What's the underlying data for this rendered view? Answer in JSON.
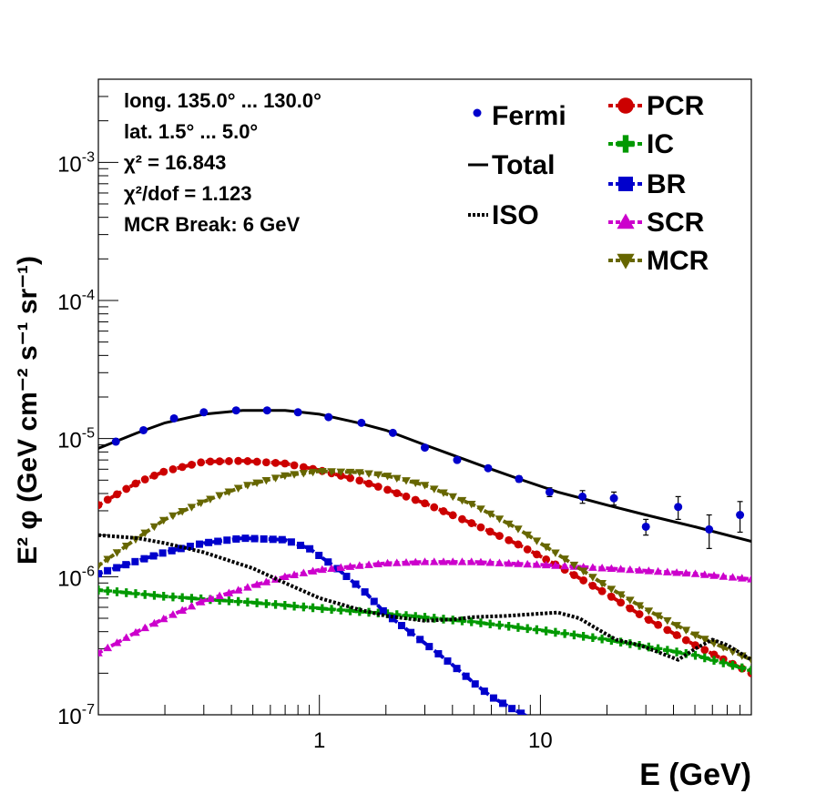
{
  "chart_data": {
    "type": "line",
    "xlabel": "E (GeV)",
    "ylabel": "E² φ (GeV cm⁻² s⁻¹ sr⁻¹)",
    "x_scale": "log",
    "y_scale": "log",
    "xlim": [
      0.1,
      90
    ],
    "ylim": [
      1e-07,
      0.004
    ],
    "x_tick_labels": [
      {
        "value": 1,
        "label": "1"
      },
      {
        "value": 10,
        "label": "10"
      }
    ],
    "y_tick_labels": [
      {
        "value": 1e-07,
        "base": "10",
        "exp": "-7"
      },
      {
        "value": 1e-06,
        "base": "10",
        "exp": "-6"
      },
      {
        "value": 1e-05,
        "base": "10",
        "exp": "-5"
      },
      {
        "value": 0.0001,
        "base": "10",
        "exp": "-4"
      },
      {
        "value": 0.001,
        "base": "10",
        "exp": "-3"
      }
    ],
    "info_lines": [
      "long. 135.0° ... 130.0°",
      "lat. 1.5° ... 5.0°",
      "χ² = 16.843",
      "χ²/dof = 1.123",
      "MCR Break:  6 GeV"
    ],
    "legend": [
      {
        "key": "fermi",
        "label": "Fermi"
      },
      {
        "key": "total",
        "label": "Total"
      },
      {
        "key": "iso",
        "label": "ISO"
      },
      {
        "key": "pcr",
        "label": "PCR"
      },
      {
        "key": "ic",
        "label": "IC"
      },
      {
        "key": "br",
        "label": "BR"
      },
      {
        "key": "scr",
        "label": "SCR"
      },
      {
        "key": "mcr",
        "label": "MCR"
      }
    ],
    "fermi": {
      "color": "#0000cc",
      "x": [
        0.12,
        0.16,
        0.22,
        0.3,
        0.42,
        0.58,
        0.8,
        1.1,
        1.55,
        2.15,
        3.0,
        4.2,
        5.8,
        8.0,
        11.0,
        15.5,
        21.5,
        30.0,
        42.0,
        58.0,
        80.0
      ],
      "y": [
        9.5e-06,
        1.15e-05,
        1.4e-05,
        1.55e-05,
        1.6e-05,
        1.6e-05,
        1.55e-05,
        1.43e-05,
        1.3e-05,
        1.1e-05,
        8.6e-06,
        7e-06,
        6.1e-06,
        5.1e-06,
        4.1e-06,
        3.8e-06,
        3.7e-06,
        2.3e-06,
        3.2e-06,
        2.2e-06,
        2.8e-06
      ],
      "err": [
        3e-07,
        3e-07,
        3e-07,
        3e-07,
        3e-07,
        3e-07,
        3e-07,
        3e-07,
        3e-07,
        3e-07,
        2.5e-07,
        2e-07,
        2e-07,
        2.5e-07,
        3e-07,
        4e-07,
        4e-07,
        3e-07,
        6e-07,
        6e-07,
        7e-07
      ]
    },
    "series": [
      {
        "name": "Total",
        "key": "total",
        "color": "#000000",
        "style": "solid",
        "marker": "none",
        "x": [
          0.1,
          0.15,
          0.2,
          0.3,
          0.45,
          0.7,
          1.0,
          1.5,
          2.0,
          3.0,
          4.0,
          6.0,
          8.0,
          12.0,
          20.0,
          30.0,
          50.0,
          90.0
        ],
        "y": [
          8.5e-06,
          1.1e-05,
          1.3e-05,
          1.5e-05,
          1.6e-05,
          1.6e-05,
          1.5e-05,
          1.3e-05,
          1.15e-05,
          9e-06,
          7.6e-06,
          6e-06,
          5.1e-06,
          4.1e-06,
          3.3e-06,
          2.8e-06,
          2.3e-06,
          1.8e-06
        ]
      },
      {
        "name": "PCR",
        "key": "pcr",
        "color": "#cc0000",
        "style": "dashed",
        "marker": "circle",
        "x": [
          0.1,
          0.15,
          0.2,
          0.3,
          0.45,
          0.7,
          1.0,
          1.5,
          2.0,
          3.0,
          5.0,
          8.0,
          12.0,
          20.0,
          30.0,
          50.0,
          90.0
        ],
        "y": [
          3.3e-06,
          4.8e-06,
          5.8e-06,
          6.8e-06,
          6.9e-06,
          6.6e-06,
          5.9e-06,
          5e-06,
          4.3e-06,
          3.4e-06,
          2.4e-06,
          1.7e-06,
          1.2e-06,
          7.5e-07,
          5e-07,
          3.2e-07,
          2e-07
        ]
      },
      {
        "name": "IC",
        "key": "ic",
        "color": "#009900",
        "style": "dashed",
        "marker": "plus",
        "x": [
          0.1,
          0.2,
          0.5,
          1.0,
          2.0,
          5.0,
          10.0,
          20.0,
          50.0,
          90.0
        ],
        "y": [
          8e-07,
          7.2e-07,
          6.5e-07,
          5.9e-07,
          5.4e-07,
          4.7e-07,
          4.1e-07,
          3.5e-07,
          2.7e-07,
          2.1e-07
        ]
      },
      {
        "name": "BR",
        "key": "br",
        "color": "#0000cc",
        "style": "dashed",
        "marker": "square",
        "x": [
          0.1,
          0.15,
          0.2,
          0.3,
          0.45,
          0.7,
          0.9,
          1.2,
          1.6,
          2.0,
          3.0,
          4.0,
          5.0,
          6.0,
          7.5,
          9.0
        ],
        "y": [
          1.05e-06,
          1.3e-06,
          1.5e-06,
          1.75e-06,
          1.9e-06,
          1.85e-06,
          1.6e-06,
          1.15e-06,
          7.8e-07,
          5.4e-07,
          3.3e-07,
          2.3e-07,
          1.7e-07,
          1.35e-07,
          1.1e-07,
          9.5e-08
        ]
      },
      {
        "name": "SCR",
        "key": "scr",
        "color": "#cc00cc",
        "style": "dashed",
        "marker": "triangle",
        "x": [
          0.1,
          0.15,
          0.2,
          0.3,
          0.5,
          0.7,
          1.0,
          1.5,
          2.0,
          3.0,
          5.0,
          10.0,
          20.0,
          50.0,
          90.0
        ],
        "y": [
          2.8e-07,
          4e-07,
          5e-07,
          6.7e-07,
          8.6e-07,
          1e-06,
          1.12e-06,
          1.2e-06,
          1.25e-06,
          1.28e-06,
          1.28e-06,
          1.22e-06,
          1.15e-06,
          1.05e-06,
          9.6e-07
        ]
      },
      {
        "name": "MCR",
        "key": "mcr",
        "color": "#666600",
        "style": "dashed",
        "marker": "triangle-down",
        "x": [
          0.1,
          0.15,
          0.2,
          0.3,
          0.45,
          0.7,
          1.0,
          1.5,
          2.0,
          3.0,
          5.0,
          8.0,
          12.0,
          20.0,
          30.0,
          50.0,
          90.0
        ],
        "y": [
          1.2e-06,
          1.9e-06,
          2.6e-06,
          3.5e-06,
          4.5e-06,
          5.4e-06,
          5.8e-06,
          5.7e-06,
          5.4e-06,
          4.6e-06,
          3.3e-06,
          2.2e-06,
          1.45e-06,
          8.5e-07,
          5.8e-07,
          3.8e-07,
          2.5e-07
        ]
      },
      {
        "name": "ISO",
        "key": "iso",
        "color": "#000000",
        "style": "dotted",
        "marker": "none",
        "x": [
          0.1,
          0.15,
          0.2,
          0.3,
          0.5,
          0.7,
          1.0,
          1.5,
          2.0,
          3.0,
          4.0,
          5.0,
          7.0,
          10.0,
          12.0,
          15.0,
          18.0,
          22.0,
          28.0,
          35.0,
          42.0,
          50.0,
          60.0,
          70.0,
          90.0
        ],
        "y": [
          2e-06,
          1.9e-06,
          1.75e-06,
          1.5e-06,
          1.15e-06,
          9e-07,
          7e-07,
          5.8e-07,
          5.2e-07,
          4.8e-07,
          4.9e-07,
          5.1e-07,
          5.2e-07,
          5.4e-07,
          5.5e-07,
          5e-07,
          4.2e-07,
          3.5e-07,
          3.2e-07,
          2.8e-07,
          2.5e-07,
          3e-07,
          3.5e-07,
          3.2e-07,
          2.5e-07
        ]
      }
    ]
  }
}
